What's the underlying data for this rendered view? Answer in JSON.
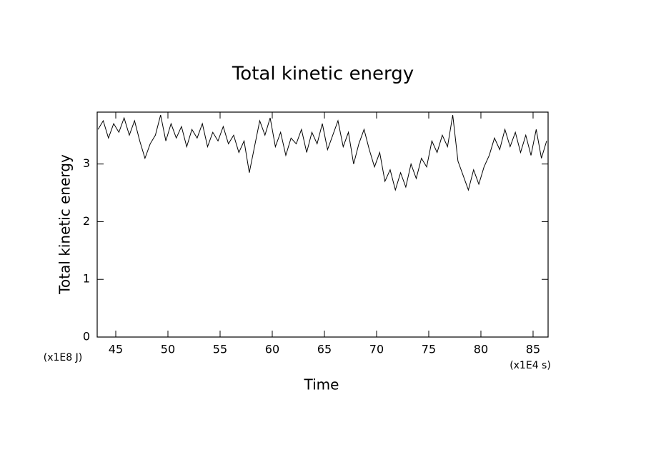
{
  "chart_data": {
    "type": "line",
    "title": "Total kinetic energy",
    "x_label": "Time",
    "y_label": "Total kinetic energy",
    "x_unit": "(x1E4 s)",
    "y_unit": "(x1E8 J)",
    "x": [
      43.3,
      43.8,
      44.3,
      44.8,
      45.3,
      45.8,
      46.3,
      46.8,
      47.3,
      47.8,
      48.3,
      48.8,
      49.3,
      49.8,
      50.3,
      50.8,
      51.3,
      51.8,
      52.3,
      52.8,
      53.3,
      53.8,
      54.3,
      54.8,
      55.3,
      55.8,
      56.3,
      56.8,
      57.3,
      57.8,
      58.3,
      58.8,
      59.3,
      59.8,
      60.3,
      60.8,
      61.3,
      61.8,
      62.3,
      62.8,
      63.3,
      63.8,
      64.3,
      64.8,
      65.3,
      65.8,
      66.3,
      66.8,
      67.3,
      67.8,
      68.3,
      68.8,
      69.3,
      69.8,
      70.3,
      70.8,
      71.3,
      71.8,
      72.3,
      72.8,
      73.3,
      73.8,
      74.3,
      74.8,
      75.3,
      75.8,
      76.3,
      76.8,
      77.3,
      77.8,
      78.3,
      78.8,
      79.3,
      79.8,
      80.3,
      80.8,
      81.3,
      81.8,
      82.3,
      82.8,
      83.3,
      83.8,
      84.3,
      84.8,
      85.3,
      85.8,
      86.3
    ],
    "series": [
      {
        "color": "#000000",
        "values": [
          3.6,
          3.75,
          3.45,
          3.7,
          3.55,
          3.8,
          3.5,
          3.75,
          3.4,
          3.1,
          3.35,
          3.5,
          3.85,
          3.4,
          3.7,
          3.45,
          3.65,
          3.3,
          3.6,
          3.45,
          3.7,
          3.3,
          3.55,
          3.4,
          3.65,
          3.35,
          3.5,
          3.2,
          3.4,
          2.85,
          3.3,
          3.75,
          3.5,
          3.8,
          3.3,
          3.55,
          3.15,
          3.45,
          3.35,
          3.6,
          3.2,
          3.55,
          3.35,
          3.7,
          3.25,
          3.5,
          3.75,
          3.3,
          3.55,
          3.0,
          3.35,
          3.6,
          3.25,
          2.95,
          3.2,
          2.7,
          2.9,
          2.55,
          2.85,
          2.6,
          3.0,
          2.75,
          3.1,
          2.95,
          3.4,
          3.2,
          3.5,
          3.3,
          3.85,
          3.05,
          2.8,
          2.55,
          2.9,
          2.65,
          2.95,
          3.15,
          3.45,
          3.25,
          3.6,
          3.3,
          3.55,
          3.2,
          3.5,
          3.15,
          3.6,
          3.1,
          3.4
        ]
      }
    ],
    "xlim": [
      43.22,
      86.44
    ],
    "ylim": [
      0,
      3.9
    ],
    "xticks": [
      45,
      50,
      55,
      60,
      65,
      70,
      75,
      80,
      85
    ],
    "yticks": [
      0,
      1,
      2,
      3
    ]
  }
}
